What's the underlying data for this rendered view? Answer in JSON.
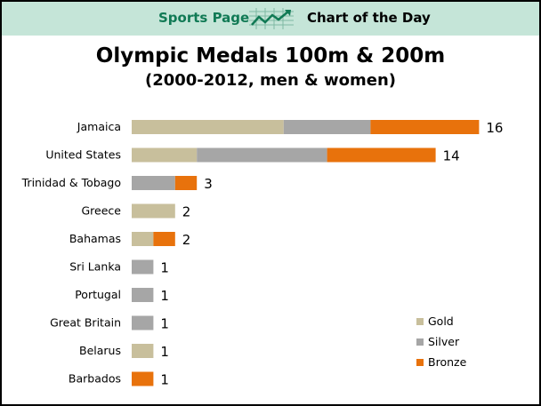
{
  "header": {
    "left_label": "Sports Page",
    "right_label": "Chart of the Day",
    "icon": "trend-chart-icon"
  },
  "chart_data": {
    "type": "bar",
    "orientation": "horizontal",
    "stacked": true,
    "title": "Olympic Medals 100m & 200m",
    "subtitle": "(2000-2012, men & women)",
    "categories": [
      "Jamaica",
      "United States",
      "Trinidad & Tobago",
      "Greece",
      "Bahamas",
      "Sri Lanka",
      "Portugal",
      "Great Britain",
      "Belarus",
      "Barbados"
    ],
    "series": [
      {
        "name": "Gold",
        "color": "#c8bf9c",
        "values": [
          7,
          3,
          0,
          2,
          1,
          0,
          0,
          0,
          1,
          0
        ]
      },
      {
        "name": "Silver",
        "color": "#a6a6a6",
        "values": [
          4,
          6,
          2,
          0,
          0,
          1,
          1,
          1,
          0,
          0
        ]
      },
      {
        "name": "Bronze",
        "color": "#e8720c",
        "values": [
          5,
          5,
          1,
          0,
          1,
          0,
          0,
          0,
          0,
          1
        ]
      }
    ],
    "totals": [
      "16",
      "14",
      "3",
      "2",
      "2",
      "1",
      "1",
      "1",
      "1",
      "1"
    ],
    "xlim": [
      0,
      16
    ],
    "grid": false,
    "legend_position": "bottom-right"
  }
}
